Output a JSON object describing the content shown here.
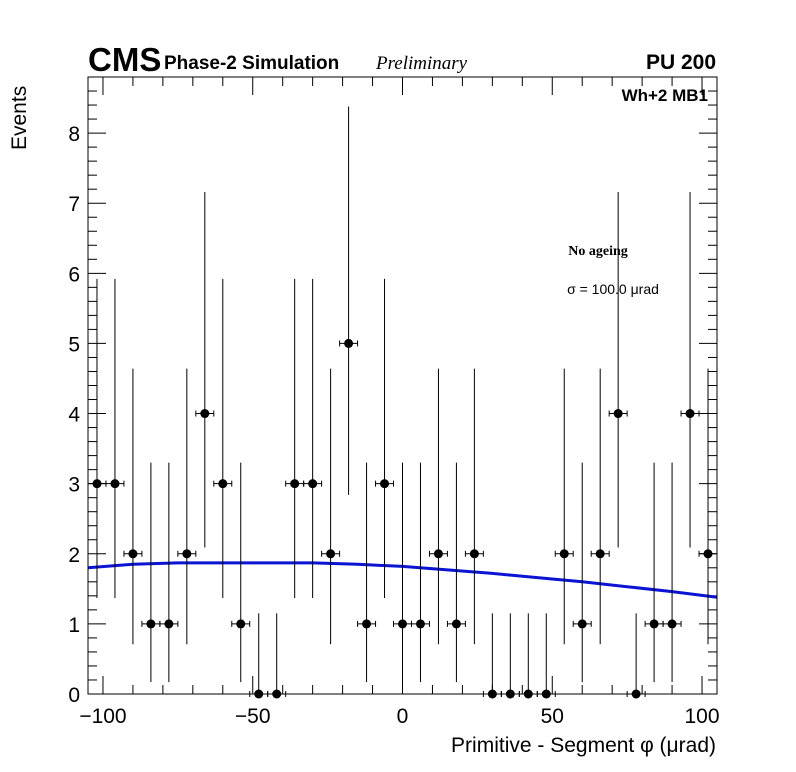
{
  "header": {
    "experiment": "CMS",
    "simulation": "Phase-2 Simulation",
    "status": "Preliminary",
    "pileup": "PU 200"
  },
  "annotations": {
    "station": "Wh+2 MB1",
    "condition": "No ageing",
    "sigma": "σ = 100.0 μrad"
  },
  "colors": {
    "data": "#000000",
    "fit": "#0a14d2",
    "frame": "#000000"
  },
  "chart_data": {
    "type": "scatter",
    "title": "",
    "xlabel": "Primitive - Segment φ (μrad)",
    "ylabel": "Events",
    "xlim": [
      -105,
      105
    ],
    "ylim": [
      0,
      8.8
    ],
    "x_ticks": [
      -100,
      -50,
      0,
      50,
      100
    ],
    "x_tick_labels": [
      "−100",
      "−50",
      "0",
      "50",
      "100"
    ],
    "y_ticks": [
      0,
      1,
      2,
      3,
      4,
      5,
      6,
      7,
      8
    ],
    "y_tick_labels": [
      "0",
      "1",
      "2",
      "3",
      "4",
      "5",
      "6",
      "7",
      "8"
    ],
    "bin_half_width": 3,
    "series": [
      {
        "name": "data",
        "x": [
          -102,
          -96,
          -90,
          -84,
          -78,
          -72,
          -66,
          -60,
          -54,
          -48,
          -42,
          -36,
          -30,
          -24,
          -18,
          -12,
          -6,
          0,
          6,
          12,
          18,
          24,
          30,
          36,
          42,
          48,
          54,
          60,
          66,
          72,
          78,
          84,
          90,
          96,
          102
        ],
        "y": [
          3,
          3,
          2,
          1,
          1,
          2,
          4,
          3,
          1,
          0,
          0,
          3,
          3,
          2,
          5,
          1,
          3,
          1,
          1,
          2,
          1,
          2,
          0,
          0,
          0,
          0,
          2,
          1,
          2,
          4,
          0,
          1,
          1,
          4,
          2
        ],
        "err_low": [
          1.63,
          1.63,
          1.29,
          0.83,
          0.83,
          1.29,
          1.91,
          1.63,
          0.83,
          0,
          0,
          1.63,
          1.63,
          1.29,
          2.16,
          0.83,
          1.63,
          0.83,
          0.83,
          1.29,
          0.83,
          1.29,
          0,
          0,
          0,
          0,
          1.29,
          0.83,
          1.29,
          1.91,
          0,
          0.83,
          0.83,
          1.91,
          1.29
        ],
        "err_high": [
          2.92,
          2.92,
          2.64,
          2.3,
          2.3,
          2.64,
          3.16,
          2.92,
          2.3,
          1.15,
          1.15,
          2.92,
          2.92,
          2.64,
          3.38,
          2.3,
          2.92,
          2.3,
          2.3,
          2.64,
          2.3,
          2.64,
          1.15,
          1.15,
          1.15,
          1.15,
          2.64,
          2.3,
          2.64,
          3.16,
          1.15,
          2.3,
          2.3,
          3.16,
          2.64
        ]
      },
      {
        "name": "fit",
        "style": "line",
        "x": [
          -105,
          -90,
          -75,
          -60,
          -45,
          -30,
          -15,
          0,
          15,
          30,
          45,
          60,
          75,
          90,
          105
        ],
        "y": [
          1.8,
          1.85,
          1.87,
          1.87,
          1.87,
          1.87,
          1.85,
          1.82,
          1.77,
          1.72,
          1.66,
          1.6,
          1.53,
          1.46,
          1.38
        ]
      }
    ]
  }
}
